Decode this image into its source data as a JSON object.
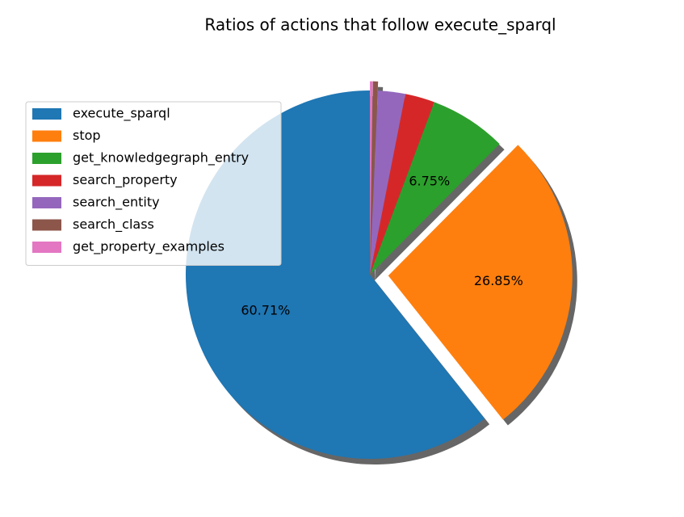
{
  "chart_data": {
    "type": "pie",
    "title": "Ratios of actions that follow execute_sparql",
    "categories": [
      "execute_sparql",
      "stop",
      "get_knowledgegraph_entry",
      "search_property",
      "search_entity",
      "search_class",
      "get_property_examples"
    ],
    "values": [
      60.71,
      26.85,
      6.75,
      2.6,
      2.4,
      0.45,
      0.24
    ],
    "value_labels": [
      "60.71%",
      "26.85%",
      "6.75%",
      null,
      null,
      null,
      null
    ],
    "colors": [
      "#1f77b4",
      "#ff7f0e",
      "#2ca02c",
      "#d62728",
      "#9467bd",
      "#8c564b",
      "#e377c2"
    ],
    "shadow": true,
    "legend": "upper left"
  }
}
